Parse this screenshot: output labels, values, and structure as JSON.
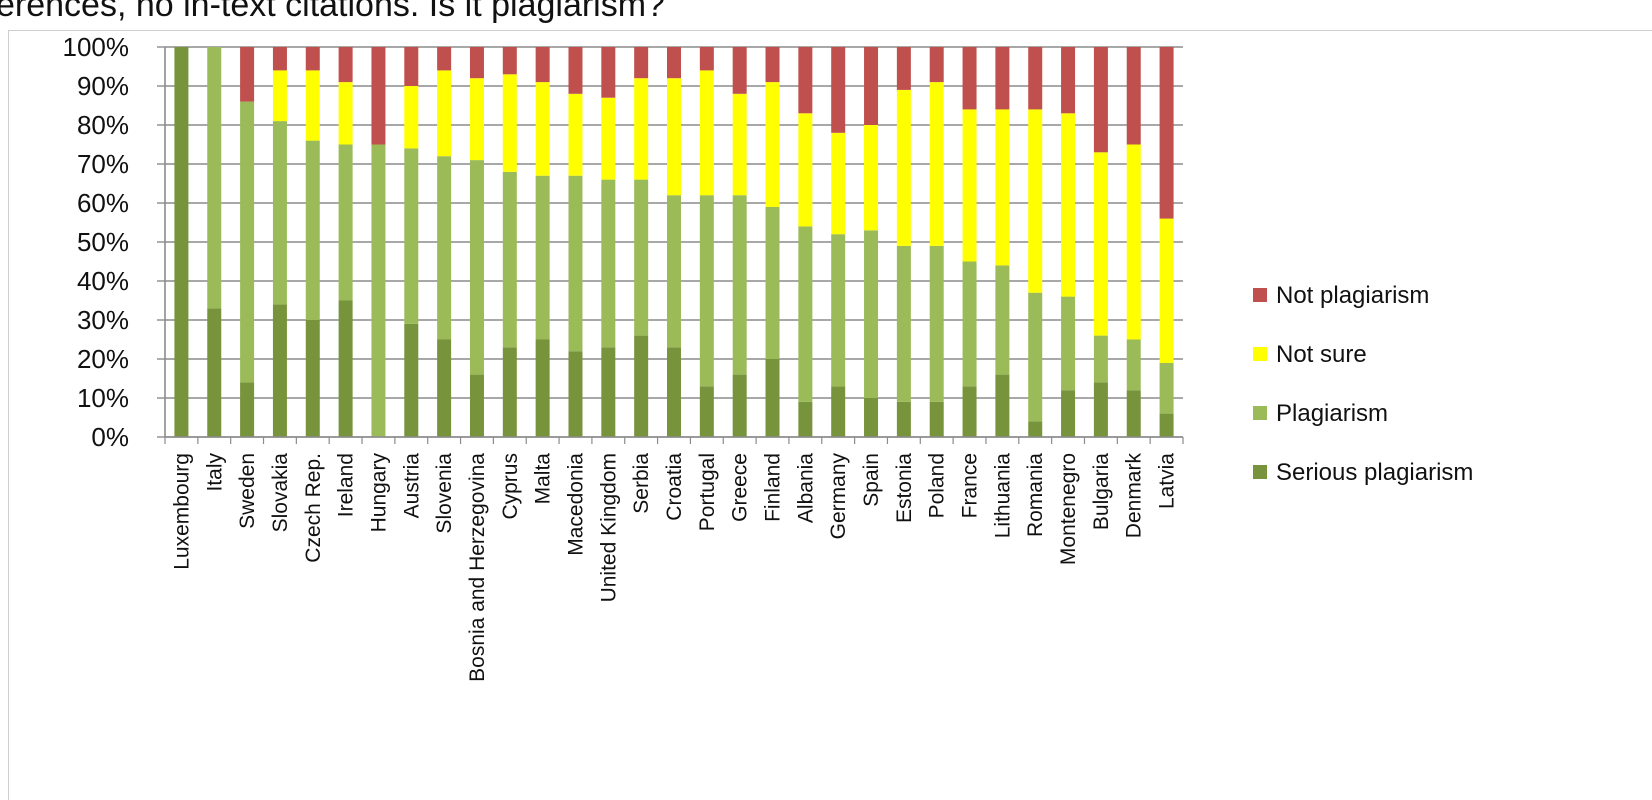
{
  "page": {
    "title": "erences, no in-text citations. Is it plagiarism?"
  },
  "chart_data": {
    "type": "bar",
    "stacked": true,
    "percent": true,
    "title": "",
    "xlabel": "",
    "ylabel": "",
    "ylim": [
      0,
      100
    ],
    "yticks": [
      "0%",
      "10%",
      "20%",
      "30%",
      "40%",
      "50%",
      "60%",
      "70%",
      "80%",
      "90%",
      "100%"
    ],
    "grid": true,
    "legend_position": "right",
    "categories": [
      "Luxembourg",
      "Italy",
      "Sweden",
      "Slovakia",
      "Czech Rep.",
      "Ireland",
      "Hungary",
      "Austria",
      "Slovenia",
      "Bosnia and Herzegovina",
      "Cyprus",
      "Malta",
      "Macedonia",
      "United Kingdom",
      "Serbia",
      "Croatia",
      "Portugal",
      "Greece",
      "Finland",
      "Albania",
      "Germany",
      "Spain",
      "Estonia",
      "Poland",
      "France",
      "Lithuania",
      "Romania",
      "Montenegro",
      "Bulgaria",
      "Denmark",
      "Latvia"
    ],
    "series": [
      {
        "name": "Serious plagiarism",
        "color": "#77933c",
        "values": [
          100,
          33,
          14,
          34,
          30,
          35,
          0,
          29,
          25,
          16,
          23,
          25,
          22,
          23,
          26,
          23,
          13,
          16,
          20,
          9,
          13,
          10,
          9,
          9,
          13,
          16,
          4,
          12,
          14,
          12,
          6
        ]
      },
      {
        "name": "Plagiarism",
        "color": "#9bbb59",
        "values": [
          0,
          67,
          72,
          47,
          46,
          40,
          75,
          45,
          47,
          55,
          45,
          42,
          45,
          43,
          40,
          39,
          49,
          46,
          39,
          45,
          39,
          43,
          40,
          40,
          32,
          28,
          33,
          24,
          12,
          13,
          13
        ]
      },
      {
        "name": "Not sure",
        "color": "#ffff00",
        "values": [
          0,
          0,
          0,
          13,
          18,
          16,
          0,
          16,
          22,
          21,
          25,
          24,
          21,
          21,
          26,
          30,
          32,
          26,
          32,
          29,
          26,
          27,
          40,
          42,
          39,
          40,
          47,
          47,
          47,
          50,
          37
        ]
      },
      {
        "name": "Not plagiarism",
        "color": "#c0504d",
        "values": [
          0,
          0,
          14,
          6,
          6,
          9,
          25,
          10,
          6,
          8,
          7,
          9,
          12,
          13,
          8,
          8,
          6,
          12,
          9,
          17,
          22,
          20,
          11,
          9,
          16,
          16,
          16,
          17,
          27,
          25,
          44
        ]
      }
    ],
    "legend_order": [
      "Not plagiarism",
      "Not sure",
      "Plagiarism",
      "Serious plagiarism"
    ]
  }
}
